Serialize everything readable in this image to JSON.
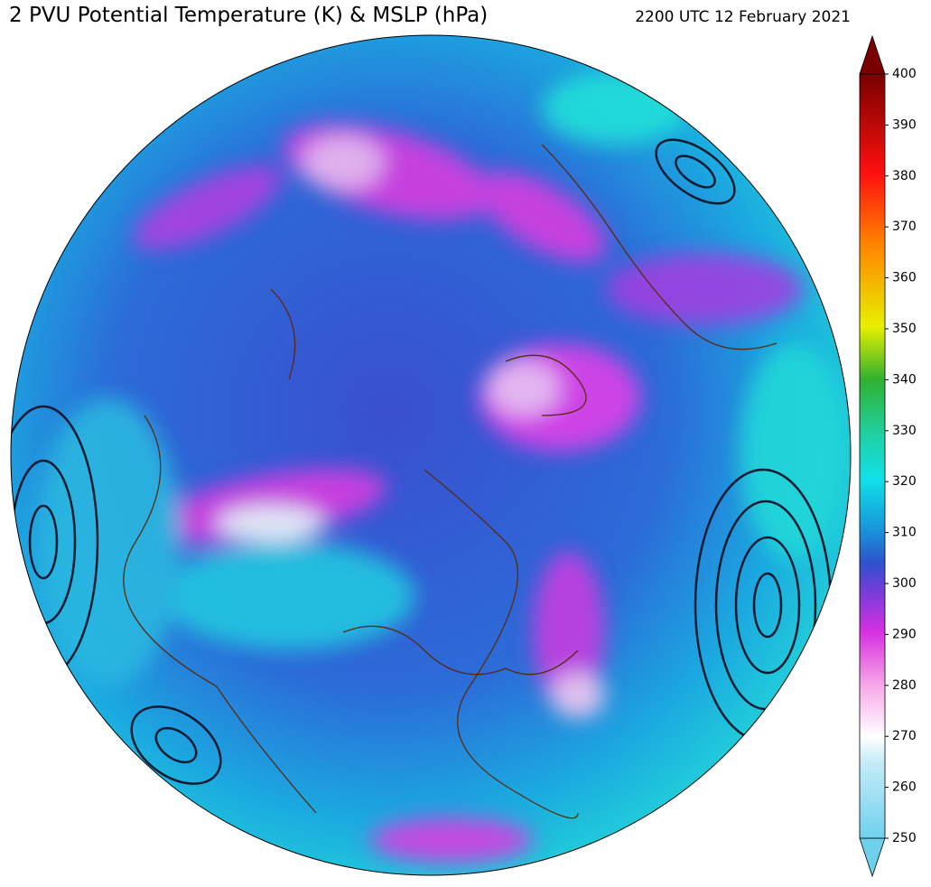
{
  "title": "2 PVU Potential Temperature (K) & MSLP (hPa)",
  "timestamp": "2200 UTC 12 February 2021",
  "colorbar": {
    "range": [
      250,
      400
    ],
    "ticks": [
      250,
      260,
      270,
      280,
      290,
      300,
      310,
      320,
      330,
      340,
      350,
      360,
      370,
      380,
      390,
      400
    ]
  }
}
